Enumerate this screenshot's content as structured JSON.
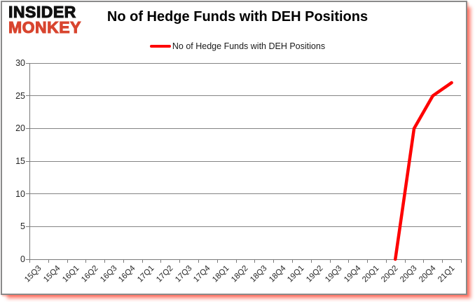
{
  "logo": {
    "line1": "INSIDER",
    "line2": "MONKEY"
  },
  "header": {
    "title": "No of Hedge Funds with DEH Positions"
  },
  "legend": {
    "label": "No of Hedge Funds with DEH Positions"
  },
  "colors": {
    "series_line": "#fe0000",
    "grid": "#848484",
    "logo_black": "#111111",
    "logo_red": "#d8452f",
    "frame_border": "#8a8a8a",
    "frame_shadow_red": "#fd3c28"
  },
  "chart_data": {
    "type": "line",
    "title": "No of Hedge Funds with DEH Positions",
    "categories": [
      "15Q3",
      "15Q4",
      "16Q1",
      "16Q2",
      "16Q3",
      "16Q4",
      "17Q1",
      "17Q2",
      "17Q3",
      "17Q4",
      "18Q1",
      "18Q2",
      "18Q3",
      "18Q4",
      "19Q1",
      "19Q2",
      "19Q3",
      "19Q4",
      "20Q1",
      "20Q2",
      "20Q3",
      "20Q4",
      "21Q1"
    ],
    "series": [
      {
        "name": "No of Hedge Funds with DEH Positions",
        "values": [
          null,
          null,
          null,
          null,
          null,
          null,
          null,
          null,
          null,
          null,
          null,
          null,
          null,
          null,
          null,
          null,
          null,
          null,
          null,
          0,
          20,
          25,
          27
        ]
      }
    ],
    "xlabel": "",
    "ylabel": "",
    "ylim": [
      0,
      30
    ],
    "yticks": [
      0,
      5,
      10,
      15,
      20,
      25,
      30
    ],
    "grid": true,
    "legend_position": "top-center"
  }
}
